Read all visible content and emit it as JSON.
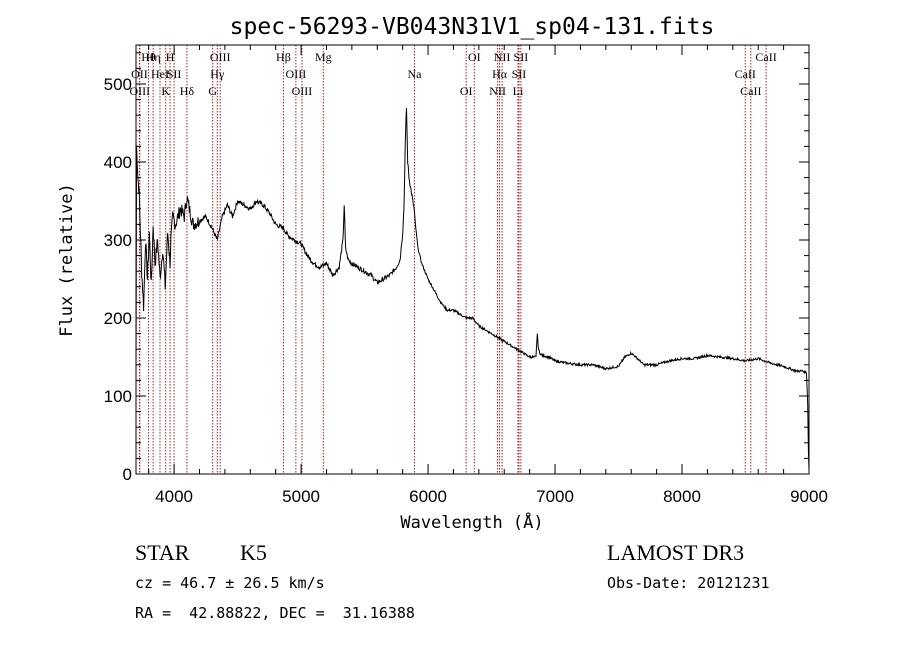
{
  "chart_data": {
    "type": "line",
    "title": "spec-56293-VB043N31V1_sp04-131.fits",
    "xlabel": "Wavelength (Å)",
    "ylabel": "Flux (relative)",
    "xlim": [
      3700,
      9000
    ],
    "ylim": [
      0,
      550
    ],
    "xticks": [
      4000,
      5000,
      6000,
      7000,
      8000,
      9000
    ],
    "yticks": [
      0,
      100,
      200,
      300,
      400,
      500
    ],
    "line_color": "#000000",
    "marker_color": "#b22222",
    "series": [
      {
        "name": "flux",
        "x": [
          3700,
          3705,
          3715,
          3725,
          3735,
          3745,
          3760,
          3775,
          3790,
          3805,
          3820,
          3835,
          3850,
          3870,
          3890,
          3910,
          3930,
          3950,
          3968,
          3975,
          3990,
          4010,
          4050,
          4080,
          4101,
          4120,
          4150,
          4200,
          4250,
          4300,
          4340,
          4380,
          4420,
          4460,
          4500,
          4550,
          4600,
          4650,
          4700,
          4750,
          4800,
          4861,
          4900,
          4950,
          5000,
          5050,
          5100,
          5150,
          5200,
          5250,
          5300,
          5330,
          5340,
          5350,
          5370,
          5400,
          5450,
          5500,
          5550,
          5600,
          5650,
          5700,
          5750,
          5780,
          5800,
          5810,
          5820,
          5830,
          5840,
          5850,
          5860,
          5870,
          5880,
          5890,
          5900,
          5920,
          5950,
          6000,
          6050,
          6100,
          6150,
          6200,
          6250,
          6300,
          6350,
          6400,
          6450,
          6500,
          6550,
          6600,
          6650,
          6700,
          6750,
          6800,
          6850,
          6860,
          6870,
          6880,
          6900,
          6950,
          7000,
          7100,
          7200,
          7300,
          7400,
          7500,
          7550,
          7600,
          7650,
          7700,
          7800,
          7900,
          8000,
          8100,
          8200,
          8300,
          8400,
          8500,
          8600,
          8700,
          8800,
          8900,
          8950,
          8980,
          8990,
          8995,
          9000
        ],
        "y": [
          130,
          420,
          380,
          360,
          310,
          260,
          215,
          300,
          250,
          310,
          240,
          320,
          270,
          300,
          250,
          290,
          240,
          310,
          270,
          300,
          330,
          320,
          340,
          330,
          355,
          340,
          320,
          325,
          330,
          315,
          300,
          330,
          345,
          330,
          350,
          345,
          340,
          350,
          345,
          335,
          320,
          315,
          305,
          300,
          295,
          280,
          270,
          265,
          270,
          255,
          265,
          300,
          345,
          290,
          275,
          270,
          265,
          260,
          255,
          245,
          250,
          255,
          265,
          275,
          310,
          340,
          420,
          470,
          400,
          380,
          370,
          360,
          350,
          340,
          320,
          290,
          270,
          250,
          235,
          220,
          210,
          210,
          205,
          200,
          200,
          190,
          185,
          180,
          175,
          170,
          165,
          160,
          155,
          150,
          150,
          180,
          160,
          155,
          152,
          150,
          145,
          142,
          140,
          140,
          135,
          138,
          150,
          155,
          148,
          140,
          140,
          145,
          148,
          148,
          152,
          150,
          148,
          145,
          148,
          142,
          138,
          132,
          132,
          130,
          90,
          30,
          5
        ]
      }
    ],
    "lines": [
      {
        "label": "Hθ",
        "x": 3798
      },
      {
        "label": "OII",
        "x": 3727
      },
      {
        "label": "OIII",
        "x": 3730
      },
      {
        "label": "Hη",
        "x": 3835
      },
      {
        "label": "HeI",
        "x": 3889
      },
      {
        "label": "K",
        "x": 3934
      },
      {
        "label": "H",
        "x": 3968
      },
      {
        "label": "SII",
        "x": 4000
      },
      {
        "label": "Hδ",
        "x": 4101
      },
      {
        "label": "OIII",
        "x": 4363
      },
      {
        "label": "Hγ",
        "x": 4340
      },
      {
        "label": "G",
        "x": 4304
      },
      {
        "label": "Hβ",
        "x": 4861
      },
      {
        "label": "OIII",
        "x": 4959
      },
      {
        "label": "OIII",
        "x": 5007
      },
      {
        "label": "Mg",
        "x": 5175
      },
      {
        "label": "Na",
        "x": 5893
      },
      {
        "label": "OI",
        "x": 6300
      },
      {
        "label": "OI",
        "x": 6364
      },
      {
        "label": "Hα",
        "x": 6563
      },
      {
        "label": "NII",
        "x": 6548
      },
      {
        "label": "NII",
        "x": 6583
      },
      {
        "label": "SII",
        "x": 6716
      },
      {
        "label": "Li",
        "x": 6708
      },
      {
        "label": "SII",
        "x": 6731
      },
      {
        "label": "CaII",
        "x": 8498
      },
      {
        "label": "CaII",
        "x": 8542
      },
      {
        "label": "CaII",
        "x": 8662
      }
    ]
  },
  "info": {
    "class": "STAR",
    "subclass": "K5",
    "survey": "LAMOST DR3",
    "cz": "cz = 46.7 ± 26.5 km/s",
    "obs_date": "Obs-Date: 20121231",
    "radec": "RA =  42.88822, DEC =  31.16388"
  }
}
